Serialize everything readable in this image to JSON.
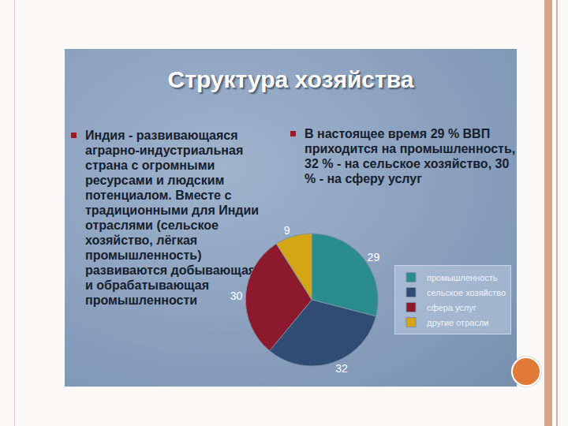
{
  "chart_data": {
    "type": "pie",
    "title": "Структура хозяйства",
    "annotations": [
      "Индия - развивающаяся аграрно-индустриальная страна с огромными ресурсами и людским потенциалом. Вместе с традиционными для Индии отраслями (сельское хозяйство, лёгкая промышленность) развиваются добывающая и обрабатывающая промышленности",
      "В настоящее время 29 % ВВП приходится на промышленность, 32 % - на сельское хозяйство, 30 % - на сферу услуг"
    ],
    "categories": [
      "промышленность",
      "сельское хозяйство",
      "сфера услуг",
      "другие отрасли"
    ],
    "values": [
      29,
      32,
      30,
      9
    ],
    "colors": [
      "#2a8c8c",
      "#2f4c74",
      "#8c1a2c",
      "#d4a514"
    ],
    "data_labels": true,
    "legend": "right"
  }
}
